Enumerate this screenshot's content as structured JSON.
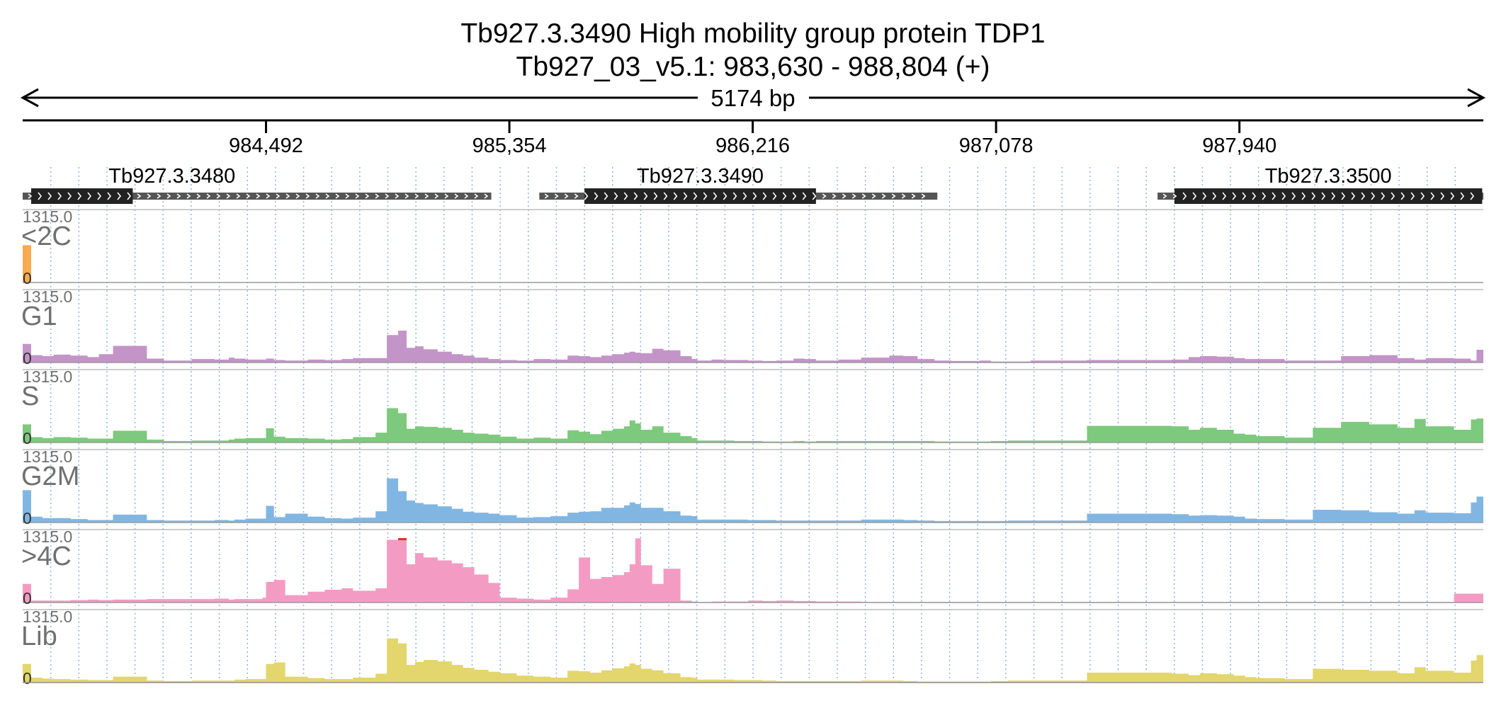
{
  "title": {
    "line1": "Tb927.3.3490  High mobility group protein TDP1",
    "line2": "Tb927_03_v5.1: 983,630 - 988,804 (+)"
  },
  "span_label": "5174 bp",
  "colors": {
    "<2C": "#f9a94e",
    "G1": "#c394c8",
    "S": "#7dc97d",
    "G2M": "#82b6e2",
    ">4C": "#f49bc4",
    "Lib": "#e2d66c",
    "clip": "#e0302a",
    "gene_cds": "#222222",
    "gene_utr": "#555555",
    "grid": "#8fb4dd"
  },
  "chart_data": {
    "type": "area",
    "xlim": [
      983630,
      988804
    ],
    "ticks": [
      {
        "pos": 984492,
        "label": "984,492"
      },
      {
        "pos": 985354,
        "label": "985,354"
      },
      {
        "pos": 986216,
        "label": "986,216"
      },
      {
        "pos": 987078,
        "label": "987,078"
      },
      {
        "pos": 987940,
        "label": "987,940"
      }
    ],
    "genes": [
      {
        "name": "Tb927.3.3480",
        "start": 983630,
        "end": 985290,
        "cds_start": 983660,
        "cds_end": 984020
      },
      {
        "name": "Tb927.3.3490",
        "start": 985460,
        "end": 986870,
        "cds_start": 985620,
        "cds_end": 986440
      },
      {
        "name": "Tb927.3.3500",
        "start": 987650,
        "end": 988804,
        "cds_start": 987710,
        "cds_end": 988800
      }
    ],
    "ylim": [
      0,
      1315.0
    ],
    "y_max_label": "1315.0",
    "y_min_label": "0",
    "x": [
      983630,
      983660,
      983700,
      983740,
      983800,
      983860,
      983900,
      983950,
      984070,
      984130,
      984230,
      984310,
      984360,
      984380,
      984420,
      984480,
      984492,
      984520,
      984560,
      984640,
      984700,
      984760,
      984800,
      984880,
      984920,
      984960,
      984990,
      985020,
      985050,
      985100,
      985150,
      985190,
      985230,
      985280,
      985320,
      985380,
      985440,
      985500,
      985560,
      985600,
      985640,
      985680,
      985720,
      985760,
      985780,
      985800,
      985820,
      985860,
      985900,
      985960,
      986000,
      986020,
      986050,
      986070,
      986110,
      986150,
      986200,
      986250,
      986300,
      986360,
      986400,
      986440,
      986520,
      986600,
      986700,
      986750,
      986800,
      986860,
      986920,
      986980,
      987020,
      987060,
      987120,
      987200,
      987400,
      987700,
      987760,
      987800,
      987860,
      987920,
      987960,
      988000,
      988100,
      988200,
      988300,
      988400,
      988500,
      988560,
      988600,
      988700,
      988760,
      988780,
      988804
    ],
    "series": [
      {
        "name": "<2C",
        "values": [
          760,
          0,
          0,
          0,
          0,
          0,
          0,
          0,
          0,
          0,
          0,
          0,
          0,
          0,
          0,
          0,
          0,
          0,
          0,
          0,
          0,
          0,
          0,
          0,
          0,
          0,
          0,
          0,
          0,
          0,
          0,
          0,
          0,
          0,
          0,
          0,
          0,
          0,
          0,
          0,
          0,
          0,
          0,
          0,
          0,
          0,
          0,
          0,
          0,
          0,
          0,
          0,
          0,
          0,
          0,
          0,
          0,
          0,
          0,
          0,
          0,
          0,
          0,
          0,
          0,
          0,
          0,
          0,
          0,
          0,
          0,
          0,
          0,
          0,
          0,
          0,
          0,
          0,
          0,
          0,
          0,
          0,
          0,
          0,
          0,
          0,
          0,
          0,
          0,
          0,
          0,
          0,
          0
        ]
      },
      {
        "name": "G1",
        "values": [
          380,
          150,
          130,
          160,
          140,
          110,
          170,
          340,
          80,
          40,
          70,
          60,
          100,
          80,
          60,
          60,
          80,
          50,
          40,
          60,
          50,
          70,
          90,
          90,
          560,
          650,
          300,
          330,
          270,
          220,
          170,
          140,
          100,
          70,
          50,
          40,
          70,
          60,
          140,
          130,
          110,
          140,
          170,
          200,
          220,
          200,
          190,
          280,
          250,
          130,
          70,
          40,
          40,
          60,
          50,
          50,
          40,
          30,
          40,
          80,
          70,
          40,
          60,
          100,
          140,
          130,
          70,
          40,
          30,
          30,
          40,
          20,
          20,
          40,
          50,
          60,
          110,
          130,
          120,
          90,
          70,
          70,
          40,
          40,
          130,
          150,
          90,
          60,
          90,
          80,
          40,
          260,
          220
        ]
      },
      {
        "name": "S",
        "values": [
          370,
          110,
          90,
          110,
          100,
          80,
          80,
          240,
          60,
          30,
          40,
          40,
          60,
          80,
          90,
          90,
          290,
          120,
          90,
          80,
          60,
          70,
          110,
          200,
          700,
          600,
          280,
          330,
          320,
          300,
          260,
          200,
          180,
          160,
          120,
          80,
          100,
          80,
          250,
          220,
          170,
          240,
          280,
          330,
          450,
          390,
          260,
          330,
          200,
          130,
          90,
          40,
          40,
          40,
          40,
          30,
          30,
          20,
          20,
          30,
          20,
          30,
          30,
          30,
          30,
          30,
          30,
          20,
          20,
          20,
          20,
          30,
          40,
          40,
          340,
          330,
          260,
          300,
          260,
          180,
          160,
          130,
          100,
          300,
          420,
          370,
          300,
          480,
          330,
          260,
          470,
          490,
          470
        ]
      },
      {
        "name": "G2M",
        "values": [
          660,
          120,
          90,
          90,
          70,
          50,
          50,
          160,
          50,
          40,
          40,
          50,
          40,
          60,
          80,
          80,
          340,
          110,
          180,
          120,
          90,
          80,
          100,
          230,
          900,
          640,
          450,
          400,
          370,
          330,
          280,
          220,
          200,
          180,
          150,
          100,
          110,
          130,
          200,
          220,
          230,
          300,
          300,
          350,
          410,
          380,
          300,
          300,
          230,
          140,
          130,
          60,
          60,
          60,
          60,
          60,
          50,
          50,
          40,
          40,
          40,
          40,
          40,
          60,
          60,
          50,
          40,
          30,
          30,
          30,
          30,
          30,
          40,
          40,
          180,
          170,
          140,
          150,
          140,
          120,
          80,
          70,
          60,
          260,
          250,
          210,
          180,
          250,
          200,
          190,
          410,
          530,
          510
        ]
      },
      {
        "name": ">4C",
        "values": [
          380,
          40,
          40,
          40,
          50,
          60,
          50,
          60,
          70,
          70,
          70,
          80,
          60,
          70,
          70,
          100,
          420,
          460,
          150,
          220,
          260,
          290,
          240,
          290,
          1280,
          1330,
          780,
          1010,
          920,
          860,
          800,
          720,
          570,
          400,
          100,
          80,
          60,
          100,
          270,
          920,
          480,
          520,
          560,
          620,
          780,
          1310,
          760,
          380,
          690,
          40,
          20,
          10,
          10,
          20,
          20,
          20,
          40,
          30,
          40,
          30,
          30,
          20,
          20,
          10,
          10,
          10,
          10,
          10,
          10,
          10,
          10,
          10,
          10,
          10,
          10,
          10,
          10,
          10,
          10,
          10,
          10,
          10,
          10,
          10,
          10,
          10,
          10,
          10,
          10,
          180,
          180,
          180,
          180
        ]
      },
      {
        "name": "Lib",
        "values": [
          380,
          100,
          80,
          70,
          60,
          50,
          50,
          120,
          40,
          30,
          40,
          40,
          40,
          60,
          70,
          70,
          380,
          410,
          120,
          90,
          70,
          70,
          100,
          180,
          900,
          800,
          360,
          420,
          460,
          430,
          360,
          300,
          260,
          220,
          190,
          140,
          120,
          100,
          240,
          230,
          200,
          250,
          290,
          330,
          390,
          360,
          280,
          250,
          190,
          110,
          100,
          60,
          60,
          60,
          60,
          50,
          50,
          40,
          30,
          30,
          30,
          30,
          30,
          40,
          40,
          30,
          20,
          20,
          20,
          20,
          20,
          30,
          40,
          40,
          200,
          180,
          150,
          190,
          170,
          140,
          110,
          90,
          70,
          280,
          260,
          240,
          190,
          310,
          240,
          200,
          450,
          560,
          640
        ]
      }
    ]
  },
  "tracks": [
    {
      "label": "<2C",
      "max": "1315.0",
      "zero": "0"
    },
    {
      "label": "G1",
      "max": "1315.0",
      "zero": "0"
    },
    {
      "label": "S",
      "max": "1315.0",
      "zero": "0"
    },
    {
      "label": "G2M",
      "max": "1315.0",
      "zero": "0"
    },
    {
      "label": ">4C",
      "max": "1315.0",
      "zero": "0"
    },
    {
      "label": "Lib",
      "max": "1315.0",
      "zero": "0"
    }
  ]
}
